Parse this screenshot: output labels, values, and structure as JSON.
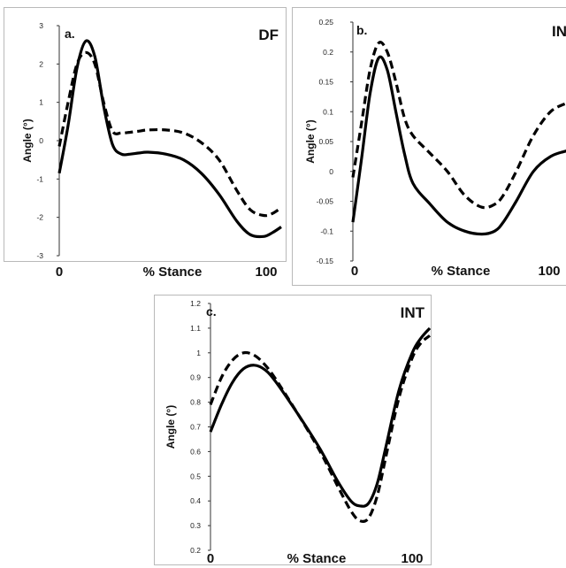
{
  "chart_data": [
    {
      "type": "line",
      "panel_label": "a.",
      "title": "DF",
      "xlabel": "% Stance",
      "ylabel": "Angle (°)",
      "x_tick_labels": [
        "0",
        "100"
      ],
      "xlim": [
        0,
        100
      ],
      "ylim": [
        -3,
        3
      ],
      "y_ticks": [
        "3",
        "2",
        "1",
        "0",
        "-1",
        "-2",
        "-3"
      ],
      "series": [
        {
          "style": "solid",
          "x": [
            0,
            4,
            8,
            12,
            16,
            20,
            24,
            28,
            32,
            36,
            40,
            48,
            56,
            64,
            72,
            80,
            86,
            92,
            96,
            100
          ],
          "y": [
            -0.85,
            0.4,
            1.9,
            2.6,
            2.2,
            0.9,
            -0.1,
            -0.35,
            -0.35,
            -0.32,
            -0.3,
            -0.35,
            -0.5,
            -0.85,
            -1.4,
            -2.1,
            -2.45,
            -2.5,
            -2.4,
            -2.25
          ]
        },
        {
          "style": "dashed",
          "x": [
            0,
            4,
            8,
            12,
            16,
            20,
            24,
            28,
            32,
            36,
            40,
            48,
            56,
            64,
            72,
            80,
            86,
            92,
            96,
            100
          ],
          "y": [
            -0.15,
            1.0,
            2.0,
            2.3,
            2.0,
            1.0,
            0.25,
            0.2,
            0.22,
            0.25,
            0.28,
            0.28,
            0.2,
            -0.05,
            -0.5,
            -1.3,
            -1.8,
            -1.95,
            -1.9,
            -1.75
          ]
        }
      ]
    },
    {
      "type": "line",
      "panel_label": "b.",
      "title": "IN",
      "xlabel": "% Stance",
      "ylabel": "Angle (°)",
      "x_tick_labels": [
        "0",
        "100"
      ],
      "xlim": [
        0,
        100
      ],
      "ylim": [
        -0.15,
        0.25
      ],
      "y_ticks": [
        "0.25",
        "0.2",
        "0.15",
        "0.1",
        "0.05",
        "0",
        "-0.05",
        "-0.1",
        "-0.15"
      ],
      "series": [
        {
          "style": "solid",
          "x": [
            0,
            4,
            8,
            12,
            16,
            20,
            24,
            28,
            36,
            44,
            52,
            60,
            66,
            70,
            76,
            84,
            92,
            100
          ],
          "y": [
            -0.085,
            0.02,
            0.13,
            0.19,
            0.17,
            0.1,
            0.03,
            -0.02,
            -0.055,
            -0.085,
            -0.1,
            -0.105,
            -0.1,
            -0.085,
            -0.05,
            0.0,
            0.025,
            0.035
          ]
        },
        {
          "style": "dashed",
          "x": [
            0,
            4,
            8,
            12,
            16,
            20,
            24,
            28,
            36,
            44,
            52,
            60,
            66,
            70,
            76,
            84,
            92,
            100
          ],
          "y": [
            -0.01,
            0.08,
            0.17,
            0.215,
            0.2,
            0.15,
            0.09,
            0.06,
            0.03,
            0.0,
            -0.04,
            -0.06,
            -0.055,
            -0.04,
            0.0,
            0.06,
            0.1,
            0.115
          ]
        }
      ]
    },
    {
      "type": "line",
      "panel_label": "c.",
      "title": "INT",
      "xlabel": "% Stance",
      "ylabel": "Angle (°)",
      "x_tick_labels": [
        "0",
        "100"
      ],
      "xlim": [
        0,
        100
      ],
      "ylim": [
        0.2,
        1.2
      ],
      "y_ticks": [
        "1.2",
        "1.1",
        "1",
        "0.9",
        "0.8",
        "0.7",
        "0.6",
        "0.5",
        "0.4",
        "0.3",
        "0.2"
      ],
      "series": [
        {
          "style": "solid",
          "x": [
            0,
            5,
            10,
            15,
            20,
            25,
            30,
            40,
            50,
            58,
            64,
            68,
            72,
            76,
            80,
            86,
            92,
            96,
            100
          ],
          "y": [
            0.68,
            0.79,
            0.88,
            0.935,
            0.95,
            0.93,
            0.88,
            0.75,
            0.61,
            0.48,
            0.4,
            0.38,
            0.39,
            0.47,
            0.62,
            0.85,
            1.0,
            1.06,
            1.1
          ]
        },
        {
          "style": "dashed",
          "x": [
            0,
            5,
            10,
            15,
            20,
            25,
            30,
            40,
            50,
            58,
            64,
            68,
            72,
            76,
            80,
            86,
            92,
            96,
            100
          ],
          "y": [
            0.79,
            0.9,
            0.97,
            1.0,
            0.99,
            0.95,
            0.89,
            0.75,
            0.6,
            0.46,
            0.36,
            0.32,
            0.33,
            0.42,
            0.58,
            0.82,
            0.98,
            1.04,
            1.07
          ]
        }
      ]
    }
  ]
}
